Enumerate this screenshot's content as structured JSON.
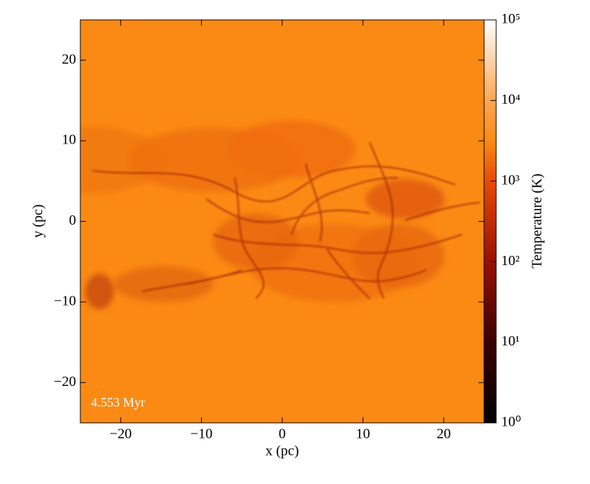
{
  "chart_data": {
    "type": "heatmap",
    "xlabel": "x  (pc)",
    "ylabel": "y  (pc)",
    "xlim": [
      -25,
      25
    ],
    "ylim": [
      -25,
      25
    ],
    "xticks": [
      {
        "value": -20,
        "label": "−20"
      },
      {
        "value": -10,
        "label": "−10"
      },
      0,
      10,
      20
    ],
    "yticks": [
      {
        "value": -20,
        "label": "−20"
      },
      {
        "value": -10,
        "label": "−10"
      },
      0,
      10,
      20
    ],
    "annotation": "4.553 Myr",
    "colorbar": {
      "label": "Temperature  (K)",
      "scale": "log",
      "lim": [
        1,
        100000
      ],
      "ticks": [
        {
          "value": 1,
          "label": "10⁰"
        },
        {
          "value": 10,
          "label": "10¹"
        },
        {
          "value": 100,
          "label": "10²"
        },
        {
          "value": 1000,
          "label": "10³"
        },
        {
          "value": 10000,
          "label": "10⁴"
        },
        {
          "value": 100000,
          "label": "10⁵"
        }
      ]
    }
  }
}
